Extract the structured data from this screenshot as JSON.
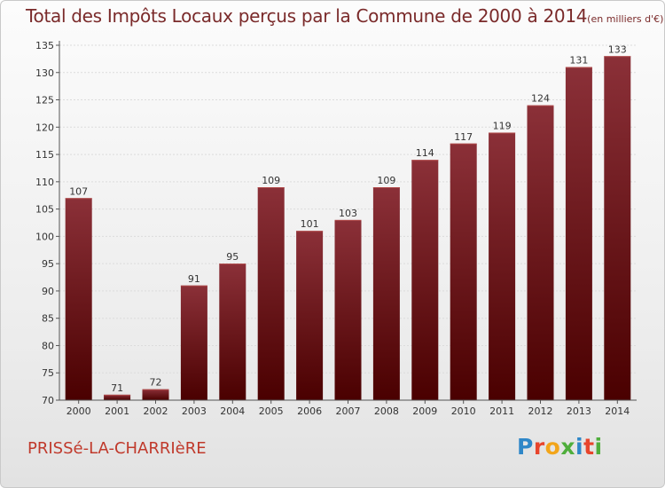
{
  "header": {
    "title": "Total des Impôts Locaux perçus par la Commune de 2000 à 2014",
    "unit": "(en milliers d'€)"
  },
  "footer": {
    "commune": "PRISSé-LA-CHARRIèRE",
    "brand": "Proxiti",
    "brand_colors": [
      "#2f87c8",
      "#e8452c",
      "#f2a51a",
      "#4fae3c",
      "#2f87c8",
      "#e8452c",
      "#4fae3c"
    ]
  },
  "chart_data": {
    "type": "bar",
    "title": "Total des Impôts Locaux perçus par la Commune de 2000 à 2014",
    "xlabel": "",
    "ylabel": "",
    "categories": [
      "2000",
      "2001",
      "2002",
      "2003",
      "2004",
      "2005",
      "2006",
      "2007",
      "2008",
      "2009",
      "2010",
      "2011",
      "2012",
      "2013",
      "2014"
    ],
    "values": [
      107,
      71,
      72,
      91,
      95,
      109,
      101,
      103,
      109,
      114,
      117,
      119,
      124,
      131,
      133
    ],
    "value_labels": [
      "107",
      "71",
      "72",
      "91",
      "95",
      "109",
      "101",
      "103",
      "109",
      "114",
      "117",
      "119",
      "124",
      "131",
      "133"
    ],
    "ylim": [
      70,
      135
    ],
    "yticks": [
      70,
      75,
      80,
      85,
      90,
      95,
      100,
      105,
      110,
      115,
      120,
      125,
      130,
      135
    ],
    "grid": true,
    "bar_color_top": "#8b3038",
    "bar_color_bottom": "#4a0000"
  }
}
